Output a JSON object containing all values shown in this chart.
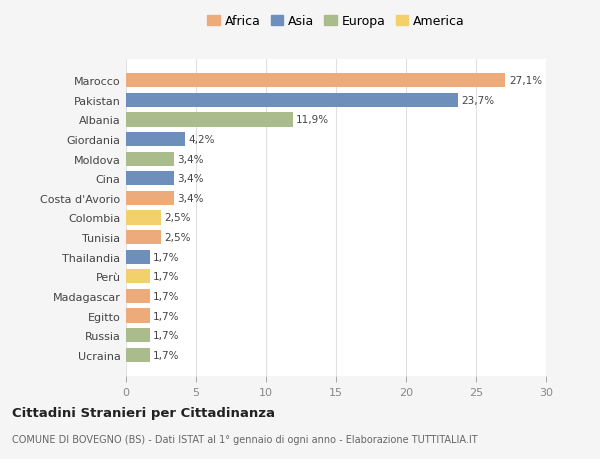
{
  "countries": [
    "Ucraina",
    "Russia",
    "Egitto",
    "Madagascar",
    "Perù",
    "Thailandia",
    "Tunisia",
    "Colombia",
    "Costa d'Avorio",
    "Cina",
    "Moldova",
    "Giordania",
    "Albania",
    "Pakistan",
    "Marocco"
  ],
  "values": [
    1.7,
    1.7,
    1.7,
    1.7,
    1.7,
    1.7,
    2.5,
    2.5,
    3.4,
    3.4,
    3.4,
    4.2,
    11.9,
    23.7,
    27.1
  ],
  "labels": [
    "1,7%",
    "1,7%",
    "1,7%",
    "1,7%",
    "1,7%",
    "1,7%",
    "2,5%",
    "2,5%",
    "3,4%",
    "3,4%",
    "3,4%",
    "4,2%",
    "11,9%",
    "23,7%",
    "27,1%"
  ],
  "continents": [
    "Europa",
    "Europa",
    "Africa",
    "Africa",
    "America",
    "Asia",
    "Africa",
    "America",
    "Africa",
    "Asia",
    "Europa",
    "Asia",
    "Europa",
    "Asia",
    "Africa"
  ],
  "colors": {
    "Africa": "#EDAB7B",
    "Asia": "#6E8EBC",
    "Europa": "#AABB8C",
    "America": "#F2D06B"
  },
  "legend_order": [
    "Africa",
    "Asia",
    "Europa",
    "America"
  ],
  "legend_colors": [
    "#EDAB7B",
    "#6E8EBC",
    "#AABB8C",
    "#F2D06B"
  ],
  "title": "Cittadini Stranieri per Cittadinanza",
  "subtitle": "COMUNE DI BOVEGNO (BS) - Dati ISTAT al 1° gennaio di ogni anno - Elaborazione TUTTITALIA.IT",
  "xlim": [
    0,
    30
  ],
  "xticks": [
    0,
    5,
    10,
    15,
    20,
    25,
    30
  ],
  "bg_color": "#f5f5f5",
  "plot_bg_color": "#ffffff",
  "grid_color": "#e0e0e0"
}
